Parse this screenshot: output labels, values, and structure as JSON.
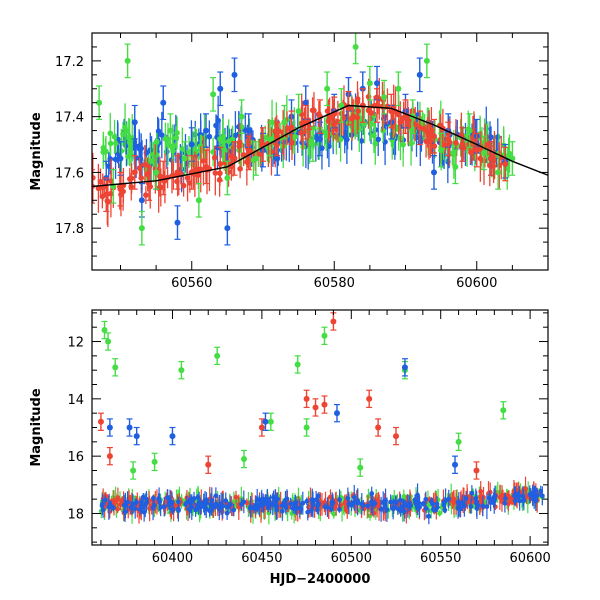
{
  "chart_data": [
    {
      "type": "scatter",
      "title": "",
      "xlabel": "",
      "ylabel": "Magnitude",
      "xlim": [
        60546,
        60610
      ],
      "ylim": [
        17.95,
        17.1
      ],
      "y_inverted": true,
      "grid": false,
      "xticks": [
        60560,
        60580,
        60600
      ],
      "yticks": [
        17.2,
        17.4,
        17.6,
        17.8
      ],
      "colors": {
        "blue": "#1f5fe0",
        "green": "#44dd44",
        "red": "#ee4433",
        "model": "#000000"
      },
      "series": [
        {
          "color": "blue",
          "points_sampled": [
            [
              60548,
              17.62
            ],
            [
              60550,
              17.55
            ],
            [
              60552,
              17.42
            ],
            [
              60553,
              17.7
            ],
            [
              60555,
              17.6
            ],
            [
              60556,
              17.35
            ],
            [
              60558,
              17.78
            ],
            [
              60560,
              17.5
            ],
            [
              60562,
              17.45
            ],
            [
              60564,
              17.3
            ],
            [
              60565,
              17.8
            ],
            [
              60566,
              17.25
            ],
            [
              60568,
              17.45
            ],
            [
              60570,
              17.52
            ],
            [
              60572,
              17.55
            ],
            [
              60574,
              17.4
            ],
            [
              60576,
              17.35
            ],
            [
              60578,
              17.48
            ],
            [
              60580,
              17.38
            ],
            [
              60582,
              17.32
            ],
            [
              60584,
              17.3
            ],
            [
              60586,
              17.28
            ],
            [
              60588,
              17.42
            ],
            [
              60590,
              17.38
            ],
            [
              60592,
              17.25
            ],
            [
              60594,
              17.6
            ],
            [
              60596,
              17.45
            ],
            [
              60598,
              17.5
            ],
            [
              60600,
              17.47
            ],
            [
              60602,
              17.55
            ],
            [
              60604,
              17.56
            ]
          ]
        },
        {
          "color": "green",
          "points_sampled": [
            [
              60547,
              17.35
            ],
            [
              60549,
              17.65
            ],
            [
              60551,
              17.2
            ],
            [
              60553,
              17.8
            ],
            [
              60555,
              17.6
            ],
            [
              60557,
              17.45
            ],
            [
              60559,
              17.55
            ],
            [
              60561,
              17.7
            ],
            [
              60563,
              17.32
            ],
            [
              60565,
              17.62
            ],
            [
              60567,
              17.4
            ],
            [
              60569,
              17.55
            ],
            [
              60571,
              17.48
            ],
            [
              60573,
              17.42
            ],
            [
              60575,
              17.38
            ],
            [
              60577,
              17.5
            ],
            [
              60579,
              17.3
            ],
            [
              60581,
              17.36
            ],
            [
              60583,
              17.15
            ],
            [
              60585,
              17.28
            ],
            [
              60587,
              17.33
            ],
            [
              60589,
              17.3
            ],
            [
              60591,
              17.4
            ],
            [
              60593,
              17.2
            ],
            [
              60595,
              17.52
            ],
            [
              60597,
              17.58
            ],
            [
              60599,
              17.45
            ],
            [
              60601,
              17.53
            ],
            [
              60603,
              17.6
            ],
            [
              60605,
              17.55
            ]
          ]
        },
        {
          "color": "red",
          "points_sampled": [
            [
              60546,
              17.65
            ],
            [
              60548,
              17.68
            ],
            [
              60550,
              17.66
            ],
            [
              60552,
              17.6
            ],
            [
              60554,
              17.64
            ],
            [
              60556,
              17.62
            ],
            [
              60558,
              17.6
            ],
            [
              60560,
              17.6
            ],
            [
              60562,
              17.58
            ],
            [
              60564,
              17.57
            ],
            [
              60566,
              17.55
            ],
            [
              60568,
              17.53
            ],
            [
              60570,
              17.5
            ],
            [
              60572,
              17.48
            ],
            [
              60574,
              17.44
            ],
            [
              60576,
              17.42
            ],
            [
              60578,
              17.4
            ],
            [
              60580,
              17.39
            ],
            [
              60582,
              17.37
            ],
            [
              60584,
              17.36
            ],
            [
              60586,
              17.36
            ],
            [
              60588,
              17.38
            ],
            [
              60590,
              17.4
            ],
            [
              60592,
              17.44
            ],
            [
              60594,
              17.47
            ],
            [
              60596,
              17.48
            ],
            [
              60598,
              17.5
            ],
            [
              60600,
              17.52
            ],
            [
              60602,
              17.55
            ],
            [
              60604,
              17.57
            ]
          ]
        }
      ],
      "model_curve": [
        [
          60546,
          17.65
        ],
        [
          60555,
          17.63
        ],
        [
          60565,
          17.58
        ],
        [
          60575,
          17.44
        ],
        [
          60582,
          17.36
        ],
        [
          60588,
          17.37
        ],
        [
          60594,
          17.43
        ],
        [
          60600,
          17.5
        ],
        [
          60605,
          17.56
        ],
        [
          60610,
          17.61
        ]
      ]
    },
    {
      "type": "scatter",
      "title": "",
      "xlabel": "HJD−2400000",
      "ylabel": "Magnitude",
      "xlim": [
        60355,
        60610
      ],
      "ylim": [
        19.1,
        10.9
      ],
      "y_inverted": true,
      "grid": false,
      "xticks": [
        60400,
        60450,
        60500,
        60550,
        60600
      ],
      "yticks": [
        12,
        14,
        16,
        18
      ],
      "colors": {
        "blue": "#1f5fe0",
        "green": "#44dd44",
        "red": "#ee4433"
      },
      "series": [
        {
          "color": "green",
          "points_sampled": [
            [
              60362,
              11.6
            ],
            [
              60364,
              12.0
            ],
            [
              60368,
              12.9
            ],
            [
              60378,
              16.5
            ],
            [
              60390,
              16.2
            ],
            [
              60405,
              13.0
            ],
            [
              60425,
              12.5
            ],
            [
              60440,
              16.1
            ],
            [
              60455,
              14.8
            ],
            [
              60470,
              12.8
            ],
            [
              60475,
              15.0
            ],
            [
              60485,
              11.8
            ],
            [
              60505,
              16.4
            ],
            [
              60530,
              13.0
            ],
            [
              60560,
              15.5
            ],
            [
              60585,
              14.4
            ]
          ]
        },
        {
          "color": "red",
          "points_sampled": [
            [
              60360,
              14.8
            ],
            [
              60365,
              16.0
            ],
            [
              60420,
              16.3
            ],
            [
              60450,
              15.0
            ],
            [
              60475,
              14.0
            ],
            [
              60480,
              14.3
            ],
            [
              60485,
              14.2
            ],
            [
              60490,
              11.3
            ],
            [
              60510,
              14.0
            ],
            [
              60515,
              15.0
            ],
            [
              60525,
              15.3
            ],
            [
              60570,
              16.5
            ]
          ]
        },
        {
          "color": "blue",
          "points_sampled": [
            [
              60365,
              15.0
            ],
            [
              60376,
              15.0
            ],
            [
              60380,
              15.3
            ],
            [
              60400,
              15.3
            ],
            [
              60452,
              14.8
            ],
            [
              60492,
              14.5
            ],
            [
              60530,
              12.9
            ],
            [
              60558,
              16.3
            ]
          ]
        }
      ]
    }
  ]
}
